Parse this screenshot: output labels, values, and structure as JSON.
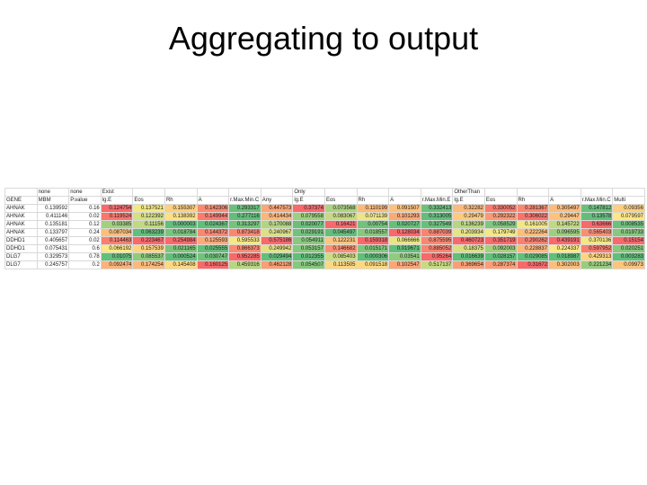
{
  "title": "Aggregating to output",
  "table": {
    "groups": [
      "none",
      "none",
      "Exist",
      "Only",
      "OtherThan"
    ],
    "header": [
      "GENE",
      "MBM",
      "P.value",
      "lg.E",
      "Eos",
      "Rh",
      "A",
      "r.Max.Min.C",
      "Any",
      "lg.E",
      "Eos",
      "Rh",
      "A",
      "r.Max.Min.E",
      "lg.E",
      "Eos",
      "Rh",
      "A",
      "r.Max.Min.C",
      "Multi"
    ],
    "rows": [
      [
        "AHNAK",
        0.139592,
        0.16,
        0.124754,
        0.137521,
        0.155307,
        0.142306,
        0.293317,
        0.447573,
        0.37374,
        0.073568,
        0.110199,
        0.091507,
        0.332413,
        0.32282,
        0.330052,
        0.281367,
        0.305497,
        0.147812,
        0.09356
      ],
      [
        "AHNAK",
        0.411146,
        0.02,
        0.119524,
        0.122392,
        0.138392,
        0.149944,
        0.277116,
        0.414434,
        0.079558,
        0.083067,
        0.071139,
        0.101293,
        0.313005,
        0.29479,
        0.292322,
        0.306022,
        0.29447,
        0.13578,
        0.079597
      ],
      [
        "AHNAK",
        0.135181,
        0.12,
        0.03385,
        0.11156,
        3e-06,
        0.024367,
        0.313297,
        0.170088,
        0.020077,
        0.16421,
        0.00754,
        0.020727,
        0.327549,
        0.136239,
        0.058529,
        0.161005,
        0.145722,
        0.63666,
        0.008535
      ],
      [
        "AHNAK",
        0.133797,
        0.24,
        0.087034,
        0.063239,
        0.018784,
        0.144372,
        0.873418,
        0.240967,
        0.029191,
        0.045497,
        0.018557,
        0.128034,
        0.887039,
        0.203934,
        0.179749,
        0.222264,
        0.096595,
        0.565403,
        0.019733
      ],
      [
        "DDHD1",
        0.405657,
        0.02,
        0.114463,
        0.223467,
        0.254984,
        0.125593,
        0.595533,
        0.575186,
        0.054911,
        0.122231,
        0.159318,
        0.066666,
        0.875595,
        0.460723,
        0.351719,
        0.290262,
        0.439191,
        0.370136,
        0.15154
      ],
      [
        "DDHD1",
        0.075431,
        0.6,
        0.066192,
        0.157539,
        0.021165,
        0.025555,
        0.866373,
        0.249942,
        0.053157,
        0.146682,
        0.015171,
        0.019671,
        0.885052,
        0.18375,
        0.092003,
        0.228837,
        0.224337,
        0.597952,
        0.020251
      ],
      [
        "DLG7",
        0.329573,
        0.78,
        0.01075,
        0.085537,
        0.000524,
        0.030747,
        0.952285,
        0.029494,
        0.012355,
        0.085403,
        0.000306,
        0.03541,
        0.95264,
        0.016639,
        0.028157,
        0.029085,
        0.018987,
        0.429313,
        0.003283
      ],
      [
        "DLG7",
        0.245757,
        0.2,
        0.092474,
        0.174254,
        0.145408,
        0.160125,
        0.459316,
        0.462128,
        0.054507,
        0.113505,
        0.091518,
        0.102547,
        0.517137,
        0.369654,
        0.287374,
        0.31672,
        0.302003,
        0.221234,
        0.09973
      ]
    ]
  }
}
